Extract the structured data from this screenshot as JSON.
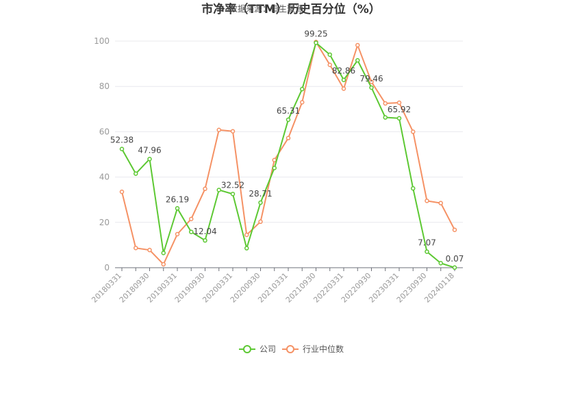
{
  "chart_data": {
    "type": "line",
    "title": "市净率（TTM）历史百分位（%）",
    "subtitle": "数据来源：恒生聚源",
    "ylim": [
      0,
      100
    ],
    "yticks": [
      0,
      20,
      40,
      60,
      80,
      100
    ],
    "grid": true,
    "legend_position": "bottom-center",
    "x": [
      "20180331",
      "20180630",
      "20180930",
      "20181231",
      "20190331",
      "20190630",
      "20190930",
      "20191231",
      "20200331",
      "20200630",
      "20200930",
      "20201231",
      "20210331",
      "20210630",
      "20210930",
      "20211231",
      "20220331",
      "20220630",
      "20220930",
      "20221231",
      "20230331",
      "20230630",
      "20230930",
      "20231231",
      "20240118"
    ],
    "xtick_labels": [
      "20180331",
      "20180930",
      "20190331",
      "20190930",
      "20200331",
      "20200930",
      "20210331",
      "20210930",
      "20220331",
      "20220930",
      "20230331",
      "20230930",
      "20240118"
    ],
    "series": [
      {
        "name": "公司",
        "color": "#5cc832",
        "values": [
          52.38,
          41.5,
          47.96,
          6.5,
          26.19,
          15.8,
          12.04,
          34.3,
          32.52,
          8.6,
          28.71,
          44.0,
          65.31,
          78.8,
          99.25,
          94.0,
          82.86,
          91.5,
          79.46,
          66.3,
          65.92,
          35.0,
          7.07,
          2.0,
          0.07
        ]
      },
      {
        "name": "行业中位数",
        "color": "#f59164",
        "values": [
          33.5,
          8.7,
          7.8,
          1.5,
          14.8,
          21.5,
          34.8,
          60.8,
          60.2,
          14.5,
          20.3,
          47.5,
          57.2,
          73.0,
          99.6,
          89.5,
          79.0,
          98.2,
          82.0,
          72.5,
          72.8,
          60.0,
          29.5,
          28.5,
          16.7
        ]
      }
    ],
    "data_labels": [
      {
        "series": 0,
        "index": 0,
        "text": "52.38"
      },
      {
        "series": 0,
        "index": 2,
        "text": "47.96"
      },
      {
        "series": 0,
        "index": 4,
        "text": "26.19"
      },
      {
        "series": 0,
        "index": 6,
        "text": "12.04"
      },
      {
        "series": 0,
        "index": 8,
        "text": "32.52"
      },
      {
        "series": 0,
        "index": 10,
        "text": "28.71"
      },
      {
        "series": 0,
        "index": 12,
        "text": "65.31"
      },
      {
        "series": 0,
        "index": 14,
        "text": "99.25"
      },
      {
        "series": 0,
        "index": 16,
        "text": "82.86"
      },
      {
        "series": 0,
        "index": 18,
        "text": "79.46"
      },
      {
        "series": 0,
        "index": 20,
        "text": "65.92"
      },
      {
        "series": 0,
        "index": 22,
        "text": "7.07"
      },
      {
        "series": 0,
        "index": 24,
        "text": "0.07"
      }
    ]
  }
}
